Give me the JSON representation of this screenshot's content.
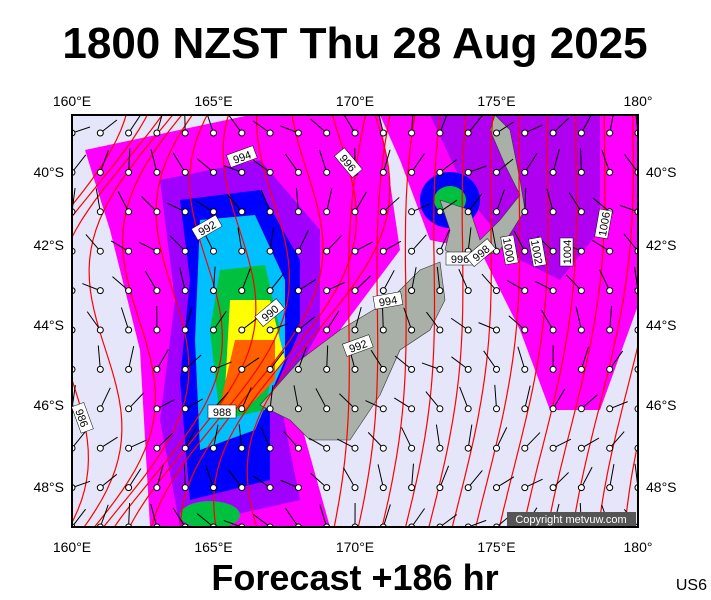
{
  "header": {
    "title": "1800 NZST Thu 28 Aug 2025"
  },
  "map": {
    "top_labels": [
      "160°E",
      "165°E",
      "170°E",
      "175°E",
      "180°"
    ],
    "bottom_labels": [
      "160°E",
      "165°E",
      "170°E",
      "175°E",
      "180°"
    ],
    "left_labels": [
      "40°S",
      "42°S",
      "44°S",
      "46°S",
      "48°S"
    ],
    "right_labels": [
      "40°S",
      "42°S",
      "44°S",
      "46°S",
      "48°S"
    ],
    "isobar_labels": [
      "994",
      "996",
      "992",
      "990",
      "988",
      "986",
      "994",
      "992",
      "996",
      "998",
      "1000",
      "1002",
      "1004",
      "1006"
    ],
    "copyright": "Copyright metvuw.com"
  },
  "footer": {
    "forecast": "Forecast +186 hr",
    "code": "US6"
  }
}
